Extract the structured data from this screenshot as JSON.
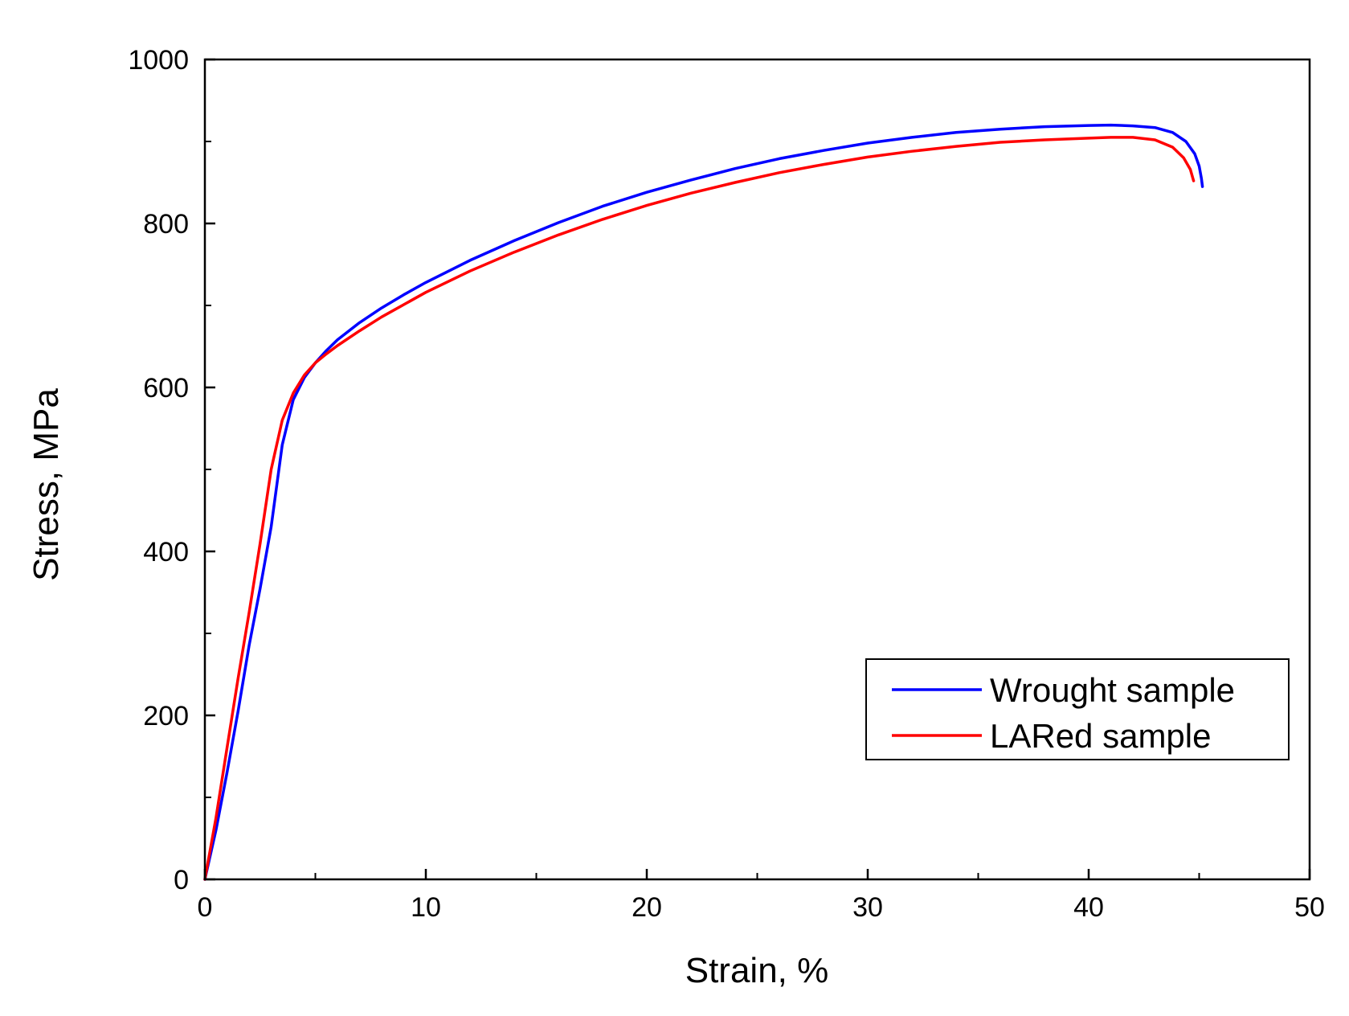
{
  "chart_data": {
    "type": "line",
    "title": "",
    "xlabel": "Strain, %",
    "ylabel": "Stress, MPa",
    "xlim": [
      0,
      50
    ],
    "ylim": [
      0,
      1000
    ],
    "x_major_ticks": [
      0,
      10,
      20,
      30,
      40,
      50
    ],
    "x_minor_ticks": [
      5,
      15,
      25,
      35,
      45
    ],
    "y_major_ticks": [
      0,
      200,
      400,
      600,
      800,
      1000
    ],
    "y_minor_ticks": [
      100,
      300,
      500,
      700,
      900
    ],
    "x_tick_labels": [
      "0",
      "10",
      "20",
      "30",
      "40",
      "50"
    ],
    "y_tick_labels": [
      "0",
      "200",
      "400",
      "600",
      "800",
      "1000"
    ],
    "grid": false,
    "legend_position": "bottom-right",
    "series": [
      {
        "name": "Wrought sample",
        "color": "#0000ff",
        "points": [
          [
            0,
            0
          ],
          [
            0.5,
            60
          ],
          [
            1.0,
            130
          ],
          [
            1.5,
            205
          ],
          [
            2.0,
            285
          ],
          [
            2.5,
            355
          ],
          [
            3.0,
            430
          ],
          [
            3.5,
            530
          ],
          [
            4.0,
            585
          ],
          [
            4.5,
            612
          ],
          [
            5.0,
            630
          ],
          [
            5.5,
            645
          ],
          [
            6.0,
            658
          ],
          [
            7.0,
            679
          ],
          [
            8.0,
            697
          ],
          [
            9.0,
            713
          ],
          [
            10.0,
            728
          ],
          [
            12.0,
            755
          ],
          [
            14.0,
            779
          ],
          [
            16.0,
            801
          ],
          [
            18.0,
            821
          ],
          [
            20.0,
            838
          ],
          [
            22.0,
            853
          ],
          [
            24.0,
            867
          ],
          [
            26.0,
            879
          ],
          [
            28.0,
            889
          ],
          [
            30.0,
            898
          ],
          [
            32.0,
            905
          ],
          [
            34.0,
            911
          ],
          [
            36.0,
            915
          ],
          [
            38.0,
            918
          ],
          [
            40.0,
            919.5
          ],
          [
            41.0,
            920
          ],
          [
            42.0,
            919
          ],
          [
            43.0,
            917
          ],
          [
            43.8,
            911
          ],
          [
            44.4,
            900
          ],
          [
            44.8,
            885
          ],
          [
            45.0,
            870
          ],
          [
            45.1,
            855
          ],
          [
            45.15,
            845
          ]
        ]
      },
      {
        "name": "LARed sample",
        "color": "#ff0000",
        "points": [
          [
            0,
            0
          ],
          [
            0.5,
            75
          ],
          [
            1.0,
            160
          ],
          [
            1.5,
            245
          ],
          [
            2.0,
            325
          ],
          [
            2.5,
            410
          ],
          [
            3.0,
            500
          ],
          [
            3.5,
            560
          ],
          [
            4.0,
            593
          ],
          [
            4.5,
            615
          ],
          [
            5.0,
            630
          ],
          [
            5.5,
            641
          ],
          [
            6.0,
            651
          ],
          [
            7.0,
            669
          ],
          [
            8.0,
            686
          ],
          [
            9.0,
            701
          ],
          [
            10.0,
            716
          ],
          [
            12.0,
            742
          ],
          [
            14.0,
            765
          ],
          [
            16.0,
            786
          ],
          [
            18.0,
            805
          ],
          [
            20.0,
            822
          ],
          [
            22.0,
            837
          ],
          [
            24.0,
            850
          ],
          [
            26.0,
            862
          ],
          [
            28.0,
            872
          ],
          [
            30.0,
            881
          ],
          [
            32.0,
            888
          ],
          [
            34.0,
            894
          ],
          [
            36.0,
            899
          ],
          [
            38.0,
            902
          ],
          [
            40.0,
            904
          ],
          [
            41.0,
            905
          ],
          [
            42.0,
            905
          ],
          [
            43.0,
            902
          ],
          [
            43.8,
            893
          ],
          [
            44.3,
            880
          ],
          [
            44.6,
            866
          ],
          [
            44.75,
            852
          ]
        ]
      }
    ]
  }
}
